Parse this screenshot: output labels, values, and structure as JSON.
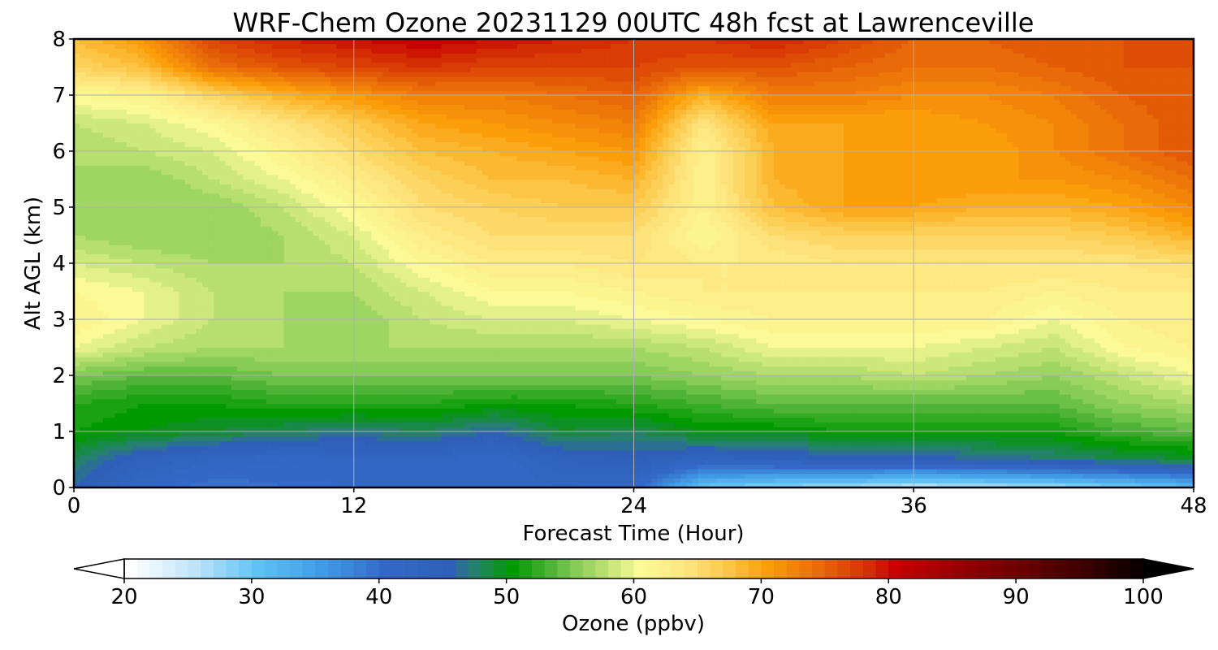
{
  "chart_data": {
    "type": "heatmap",
    "title": "WRF-Chem Ozone  20231129 00UTC 48h fcst at Lawrenceville",
    "xlabel": "Forecast Time (Hour)",
    "ylabel": "Alt AGL (km)",
    "x_ticks": [
      0,
      12,
      24,
      36,
      48
    ],
    "y_ticks": [
      0,
      1,
      2,
      3,
      4,
      5,
      6,
      7,
      8
    ],
    "xlim": [
      0,
      48
    ],
    "ylim": [
      0,
      8
    ],
    "grid": true,
    "x_hours": [
      0,
      3,
      6,
      9,
      12,
      15,
      18,
      21,
      24,
      27,
      30,
      33,
      36,
      39,
      42,
      45,
      48
    ],
    "z_km": [
      0,
      0.5,
      1,
      1.5,
      2,
      2.5,
      3,
      3.5,
      4,
      4.5,
      5,
      5.5,
      6,
      6.5,
      7,
      7.5,
      8
    ],
    "ozone_ppbv": [
      [
        46,
        41,
        39,
        40,
        41,
        41,
        41,
        42,
        41,
        30,
        28,
        27,
        25,
        26,
        27,
        29,
        31
      ],
      [
        48,
        44,
        42,
        41,
        42,
        42,
        41,
        44,
        45,
        43,
        44,
        45,
        45,
        46,
        47,
        48,
        49
      ],
      [
        51,
        50,
        49,
        48,
        47,
        48,
        46,
        49,
        48,
        50,
        50,
        51,
        51,
        51,
        51,
        53,
        54
      ],
      [
        52,
        51,
        51,
        52,
        52,
        52,
        51,
        51,
        52,
        53,
        54,
        54,
        54,
        54,
        54,
        56,
        57
      ],
      [
        55,
        54,
        54,
        55,
        55,
        55,
        55,
        55,
        55,
        56,
        57,
        57,
        58,
        57,
        56,
        58,
        60
      ],
      [
        60,
        58,
        57,
        57,
        57,
        57,
        57,
        57,
        57,
        58,
        60,
        60,
        60,
        59,
        58,
        61,
        62
      ],
      [
        62,
        60,
        58,
        57,
        56,
        58,
        59,
        59,
        60,
        61,
        62,
        62,
        62,
        62,
        60,
        62,
        63
      ],
      [
        61,
        60,
        58,
        57,
        57,
        59,
        61,
        61,
        62,
        63,
        63,
        63,
        63,
        63,
        62,
        63,
        63
      ],
      [
        59,
        58,
        57,
        57,
        58,
        61,
        63,
        63,
        64,
        63,
        63,
        64,
        64,
        64,
        64,
        64,
        65
      ],
      [
        57,
        56,
        56,
        57,
        59,
        63,
        65,
        65,
        65,
        61,
        65,
        66,
        66,
        66,
        66,
        67,
        69
      ],
      [
        56,
        56,
        56,
        58,
        61,
        65,
        66,
        67,
        67,
        62,
        68,
        70,
        70,
        69,
        69,
        70,
        72
      ],
      [
        57,
        56,
        58,
        60,
        63,
        66,
        68,
        68,
        69,
        62,
        69,
        70,
        71,
        71,
        71,
        72,
        74
      ],
      [
        57,
        58,
        59,
        62,
        65,
        68,
        69,
        70,
        71,
        62,
        69,
        70,
        70,
        70,
        72,
        74,
        76
      ],
      [
        58,
        59,
        61,
        64,
        67,
        70,
        71,
        72,
        73,
        64,
        70,
        70,
        70,
        71,
        72,
        74,
        76
      ],
      [
        61,
        62,
        66,
        69,
        71,
        73,
        73,
        74,
        75,
        69,
        73,
        73,
        72,
        72,
        73,
        75,
        76
      ],
      [
        66,
        68,
        74,
        76,
        77,
        78,
        77,
        77,
        77,
        76,
        76,
        75,
        74,
        74,
        75,
        76,
        76
      ],
      [
        68,
        71,
        77,
        79,
        80,
        81,
        80,
        79,
        78,
        78,
        79,
        77,
        75,
        75,
        76,
        76,
        76
      ]
    ],
    "colorbar": {
      "label": "Ozone  (ppbv)",
      "ticks": [
        20,
        30,
        40,
        50,
        60,
        70,
        80,
        90,
        100
      ],
      "range": [
        20,
        100
      ],
      "step": 1,
      "extend": "both",
      "orientation": "horizontal",
      "placement": "bottom",
      "color_stops": [
        {
          "v": 20,
          "c": "#ffffff"
        },
        {
          "v": 25,
          "c": "#bfe4fa"
        },
        {
          "v": 30,
          "c": "#5ec2f5"
        },
        {
          "v": 35,
          "c": "#3f9be6"
        },
        {
          "v": 40,
          "c": "#3468c8"
        },
        {
          "v": 45,
          "c": "#2f5fb8"
        },
        {
          "v": 47,
          "c": "#26806e"
        },
        {
          "v": 50,
          "c": "#009a00"
        },
        {
          "v": 53,
          "c": "#4fb338"
        },
        {
          "v": 55,
          "c": "#87cc57"
        },
        {
          "v": 58,
          "c": "#cde87b"
        },
        {
          "v": 60,
          "c": "#fbfa96"
        },
        {
          "v": 64,
          "c": "#fde27a"
        },
        {
          "v": 67,
          "c": "#fcc545"
        },
        {
          "v": 70,
          "c": "#fb9e0a"
        },
        {
          "v": 74,
          "c": "#e86a08"
        },
        {
          "v": 78,
          "c": "#d42d04"
        },
        {
          "v": 80,
          "c": "#c80000"
        },
        {
          "v": 85,
          "c": "#960000"
        },
        {
          "v": 90,
          "c": "#6a0000"
        },
        {
          "v": 95,
          "c": "#3b0000"
        },
        {
          "v": 100,
          "c": "#000000"
        }
      ]
    }
  }
}
